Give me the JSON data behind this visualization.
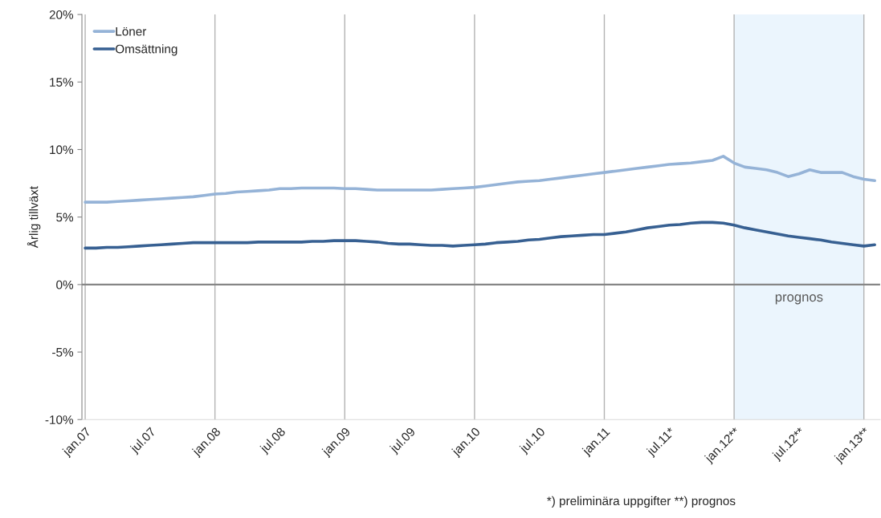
{
  "chart_data": {
    "type": "line",
    "ylabel": "Årlig tillväxt",
    "categories": [
      "jan.07",
      null,
      null,
      null,
      null,
      null,
      "jul.07",
      null,
      null,
      null,
      null,
      null,
      "jan.08",
      null,
      null,
      null,
      null,
      null,
      "jul.08",
      null,
      null,
      null,
      null,
      null,
      "jan.09",
      null,
      null,
      null,
      null,
      null,
      "jul.09",
      null,
      null,
      null,
      null,
      null,
      "jan.10",
      null,
      null,
      null,
      null,
      null,
      "jul.10",
      null,
      null,
      null,
      null,
      null,
      "jan.11",
      null,
      null,
      null,
      null,
      null,
      "jul.11*",
      null,
      null,
      null,
      null,
      null,
      "jan.12**",
      null,
      null,
      null,
      null,
      null,
      "jul.12**",
      null,
      null,
      null,
      null,
      null,
      "jan.13**",
      null
    ],
    "series": [
      {
        "name": "Löner",
        "color": "#95b3d7",
        "values": [
          6.1,
          6.1,
          6.1,
          6.15,
          6.2,
          6.25,
          6.3,
          6.35,
          6.4,
          6.45,
          6.5,
          6.6,
          6.7,
          6.75,
          6.85,
          6.9,
          6.95,
          7.0,
          7.1,
          7.1,
          7.15,
          7.15,
          7.15,
          7.15,
          7.1,
          7.1,
          7.05,
          7.0,
          7.0,
          7.0,
          7.0,
          7.0,
          7.0,
          7.05,
          7.1,
          7.15,
          7.2,
          7.3,
          7.4,
          7.5,
          7.6,
          7.65,
          7.7,
          7.8,
          7.9,
          8.0,
          8.1,
          8.2,
          8.3,
          8.4,
          8.5,
          8.6,
          8.7,
          8.8,
          8.9,
          8.95,
          9.0,
          9.1,
          9.2,
          9.5,
          9.0,
          8.7,
          8.6,
          8.5,
          8.3,
          8.0,
          8.2,
          8.5,
          8.3,
          8.3,
          8.3,
          8.0,
          7.8,
          7.7
        ]
      },
      {
        "name": "Omsättning",
        "color": "#376092",
        "values": [
          2.7,
          2.7,
          2.75,
          2.75,
          2.8,
          2.85,
          2.9,
          2.95,
          3.0,
          3.05,
          3.1,
          3.1,
          3.1,
          3.1,
          3.1,
          3.1,
          3.15,
          3.15,
          3.15,
          3.15,
          3.15,
          3.2,
          3.2,
          3.25,
          3.25,
          3.25,
          3.2,
          3.15,
          3.05,
          3.0,
          3.0,
          2.95,
          2.9,
          2.9,
          2.85,
          2.9,
          2.95,
          3.0,
          3.1,
          3.15,
          3.2,
          3.3,
          3.35,
          3.45,
          3.55,
          3.6,
          3.65,
          3.7,
          3.7,
          3.8,
          3.9,
          4.05,
          4.2,
          4.3,
          4.4,
          4.45,
          4.55,
          4.6,
          4.6,
          4.55,
          4.4,
          4.2,
          4.05,
          3.9,
          3.75,
          3.6,
          3.5,
          3.4,
          3.3,
          3.15,
          3.05,
          2.95,
          2.85,
          2.95
        ]
      }
    ],
    "ylim": [
      -10,
      20
    ],
    "yticks": [
      {
        "value": -10,
        "label": "-10%"
      },
      {
        "value": -5,
        "label": "-5%"
      },
      {
        "value": 0,
        "label": "0%"
      },
      {
        "value": 5,
        "label": "5%"
      },
      {
        "value": 10,
        "label": "10%"
      },
      {
        "value": 15,
        "label": "15%"
      },
      {
        "value": 20,
        "label": "20%"
      }
    ],
    "ref_lines": [
      {
        "axis": "y",
        "value": 0,
        "color": "#868686"
      }
    ],
    "bands": [
      {
        "axis": "x",
        "from": "jan.12**",
        "to": "jan.13**",
        "label": "prognos",
        "color": "#ebf5fd"
      }
    ],
    "annotations": [
      "*) preliminära uppgifter **) prognos"
    ],
    "grid": "x",
    "legend": "top left",
    "marker": "none",
    "line_style": "solid"
  }
}
